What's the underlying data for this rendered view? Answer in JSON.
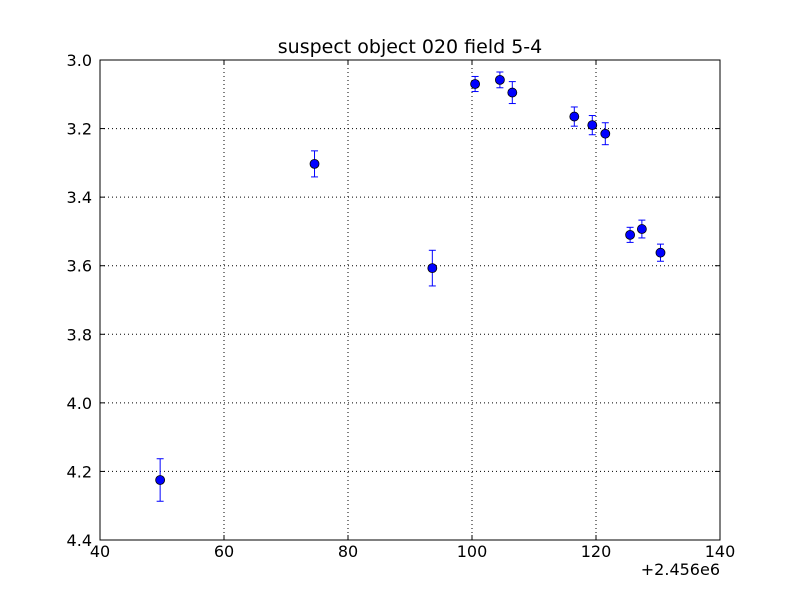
{
  "chart_data": {
    "type": "scatter",
    "title": "suspect object 020 field 5-4",
    "xlabel": "",
    "ylabel": "",
    "x_offset_label": "+2.456e6",
    "xlim": [
      40,
      140
    ],
    "ylim": [
      3.0,
      4.4
    ],
    "y_inverted": true,
    "grid": true,
    "x_ticks": [
      "40",
      "60",
      "80",
      "100",
      "120",
      "140"
    ],
    "y_ticks": [
      "3.0",
      "3.2",
      "3.4",
      "3.6",
      "3.8",
      "4.0",
      "4.2",
      "4.4"
    ],
    "marker_color": "#0000ff",
    "series": [
      {
        "points": [
          {
            "x": 49.7,
            "y": 4.225,
            "err": 0.062
          },
          {
            "x": 74.6,
            "y": 3.303,
            "err": 0.038
          },
          {
            "x": 93.6,
            "y": 3.607,
            "err": 0.052
          },
          {
            "x": 100.5,
            "y": 3.07,
            "err": 0.022
          },
          {
            "x": 104.5,
            "y": 3.058,
            "err": 0.023
          },
          {
            "x": 106.5,
            "y": 3.095,
            "err": 0.032
          },
          {
            "x": 116.5,
            "y": 3.165,
            "err": 0.028
          },
          {
            "x": 119.4,
            "y": 3.19,
            "err": 0.028
          },
          {
            "x": 121.5,
            "y": 3.215,
            "err": 0.032
          },
          {
            "x": 125.5,
            "y": 3.51,
            "err": 0.022
          },
          {
            "x": 127.4,
            "y": 3.493,
            "err": 0.026
          },
          {
            "x": 130.4,
            "y": 3.562,
            "err": 0.025
          }
        ]
      }
    ]
  }
}
